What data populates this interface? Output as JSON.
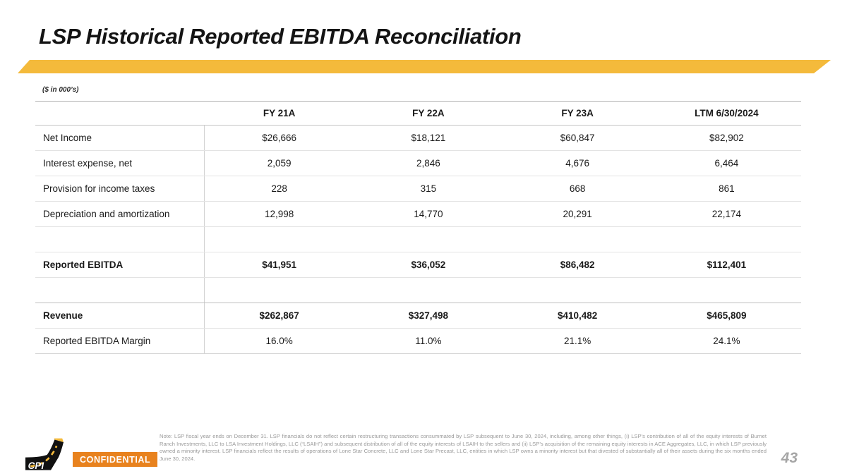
{
  "slide": {
    "title": "LSP Historical Reported EBITDA Reconciliation",
    "units_label": "($ in 000’s)",
    "page_number": "43",
    "confidential_label": "CONFIDENTIAL",
    "logo_text": "CPI",
    "note": "Note: LSP fiscal year ends on December 31. LSP financials do not reflect certain restructuring transactions consummated by LSP subsequent to June 30, 2024, including, among other things, (i) LSP’s contribution of all of the equity interests of Burnet Ranch Investments, LLC to LSA Investment Holdings, LLC (“LSAIH”) and subsequent distribution of all of the equity interests of LSAIH to the sellers and (ii) LSP’s acquisition of the remaining equity interests in ACE Aggregates, LLC, in which LSP previously owned a minority interest. LSP financials reflect the results of operations of Lone Star Concrete, LLC and Lone Star Precast, LLC, entities in which LSP owns a minority interest but that divested of substantially all of their assets during the six months ended June 30, 2024."
  },
  "table": {
    "headers": [
      "FY 21A",
      "FY 22A",
      "FY 23A",
      "LTM 6/30/2024"
    ],
    "rows": [
      {
        "label": "Net Income",
        "values": [
          "$26,666",
          "$18,121",
          "$60,847",
          "$82,902"
        ],
        "bold": false,
        "spacer": false,
        "heavy_top": false
      },
      {
        "label": "Interest expense, net",
        "values": [
          "2,059",
          "2,846",
          "4,676",
          "6,464"
        ],
        "bold": false,
        "spacer": false,
        "heavy_top": false
      },
      {
        "label": "Provision for income taxes",
        "values": [
          "228",
          "315",
          "668",
          "861"
        ],
        "bold": false,
        "spacer": false,
        "heavy_top": false
      },
      {
        "label": "Depreciation and amortization",
        "values": [
          "12,998",
          "14,770",
          "20,291",
          "22,174"
        ],
        "bold": false,
        "spacer": false,
        "heavy_top": false
      },
      {
        "label": "",
        "values": [
          "",
          "",
          "",
          ""
        ],
        "bold": false,
        "spacer": true,
        "heavy_top": false
      },
      {
        "label": "Reported EBITDA",
        "values": [
          "$41,951",
          "$36,052",
          "$86,482",
          "$112,401"
        ],
        "bold": true,
        "spacer": false,
        "heavy_top": false
      },
      {
        "label": "",
        "values": [
          "",
          "",
          "",
          ""
        ],
        "bold": false,
        "spacer": true,
        "heavy_top": false
      },
      {
        "label": "Revenue",
        "values": [
          "$262,867",
          "$327,498",
          "$410,482",
          "$465,809"
        ],
        "bold": true,
        "spacer": false,
        "heavy_top": true
      },
      {
        "label": "Reported EBITDA Margin",
        "values": [
          "16.0%",
          "11.0%",
          "21.1%",
          "24.1%"
        ],
        "bold": false,
        "spacer": false,
        "heavy_top": false
      }
    ]
  },
  "colors": {
    "accent_gold": "#f4ba3b",
    "confidential_orange": "#e8821e",
    "note_gray": "#9a9a9a",
    "page_gray": "#a6a6a6"
  }
}
